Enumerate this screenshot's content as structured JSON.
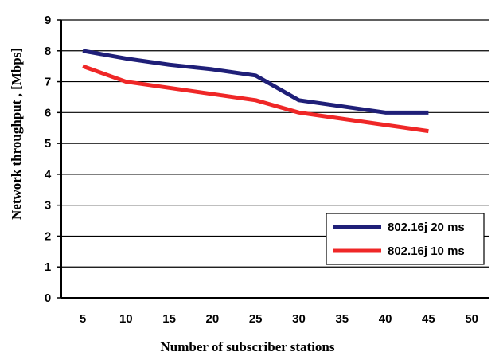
{
  "chart_data": {
    "type": "line",
    "title": "",
    "xlabel": "Number of subscriber stations",
    "ylabel": "Network throughput , [Mbps]",
    "x": [
      5,
      10,
      15,
      20,
      25,
      30,
      35,
      40,
      45,
      50
    ],
    "x_tick_labels": [
      "5",
      "10",
      "15",
      "20",
      "25",
      "30",
      "35",
      "40",
      "45",
      "50"
    ],
    "y_tick_labels": [
      "0",
      "1",
      "2",
      "3",
      "4",
      "5",
      "6",
      "7",
      "8",
      "9"
    ],
    "ylim": [
      0,
      9
    ],
    "grid": "horizontal",
    "legend_position": "bottom-right",
    "series": [
      {
        "name": "802.16j 20 ms",
        "color": "#1f1f78",
        "x": [
          5,
          10,
          15,
          20,
          25,
          30,
          35,
          40,
          45
        ],
        "values": [
          8.0,
          7.75,
          7.55,
          7.4,
          7.2,
          6.4,
          6.2,
          6.0,
          6.0
        ]
      },
      {
        "name": "802.16j 10 ms",
        "color": "#ef2727",
        "x": [
          5,
          10,
          15,
          20,
          25,
          30,
          35,
          40,
          45
        ],
        "values": [
          7.5,
          7.0,
          6.8,
          6.6,
          6.4,
          6.0,
          5.8,
          5.6,
          5.4
        ]
      }
    ]
  }
}
